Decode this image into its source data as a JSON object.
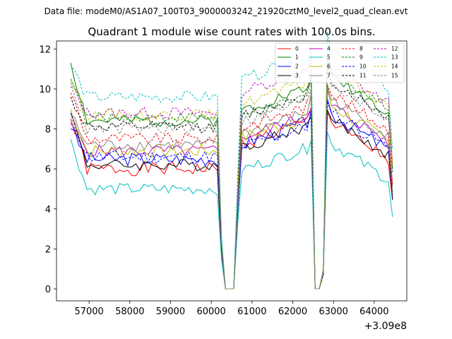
{
  "chart_data": {
    "type": "line",
    "suptitle": "Data file: modeM0/AS1A07_100T03_9000003242_21920cztM0_level2_quad_clean.evt",
    "title": "Quadrant 1 module wise count rates with 100.0s bins.",
    "xlabel": "",
    "ylabel": "",
    "x_offset_label": "+3.09e8",
    "xlim": [
      56200,
      64800
    ],
    "ylim": [
      -0.6,
      12.4
    ],
    "xticks": [
      57000,
      58000,
      59000,
      60000,
      61000,
      62000,
      63000,
      64000
    ],
    "yticks": [
      0,
      2,
      4,
      6,
      8,
      10,
      12
    ],
    "x_start": 56550,
    "x_step": 100,
    "n_points": 80,
    "gap1": {
      "lead_in": 60250,
      "zero_start": 60350,
      "zero_end": 60550,
      "recover": 60650
    },
    "gap2": {
      "lead_in": 62550,
      "zero_start": 62550,
      "zero_end": 62650,
      "recover": 62750
    },
    "legend": {
      "position": "upper right",
      "ncol": 4
    },
    "series": [
      {
        "name": "0",
        "color": "#ff0000",
        "style": "solid",
        "start": 8.5,
        "base": 6.0,
        "recover": 7.2,
        "spread": 0.35,
        "seed": 1
      },
      {
        "name": "1",
        "color": "#008000",
        "style": "solid",
        "start": 11.3,
        "base": 8.4,
        "recover": 8.9,
        "spread": 0.3,
        "seed": 2
      },
      {
        "name": "2",
        "color": "#0000ff",
        "style": "solid",
        "start": 8.0,
        "base": 6.5,
        "recover": 7.2,
        "spread": 0.35,
        "seed": 3
      },
      {
        "name": "3",
        "color": "#000000",
        "style": "solid",
        "start": 8.8,
        "base": 6.2,
        "recover": 7.0,
        "spread": 0.3,
        "seed": 4
      },
      {
        "name": "4",
        "color": "#bf00bf",
        "style": "solid",
        "start": 8.3,
        "base": 6.9,
        "recover": 7.5,
        "spread": 0.3,
        "seed": 5
      },
      {
        "name": "5",
        "color": "#00bfbf",
        "style": "solid",
        "start": 7.5,
        "base": 5.0,
        "recover": 5.9,
        "spread": 0.3,
        "seed": 6
      },
      {
        "name": "6",
        "color": "#bfbf00",
        "style": "solid",
        "start": 9.0,
        "base": 6.9,
        "recover": 7.5,
        "spread": 0.35,
        "seed": 7
      },
      {
        "name": "7",
        "color": "#808080",
        "style": "solid",
        "start": 8.7,
        "base": 7.2,
        "recover": 7.7,
        "spread": 0.3,
        "seed": 8
      },
      {
        "name": "8",
        "color": "#ff0000",
        "style": "dashed",
        "start": 9.8,
        "base": 7.5,
        "recover": 8.0,
        "spread": 0.3,
        "seed": 9
      },
      {
        "name": "9",
        "color": "#008000",
        "style": "dashed",
        "start": 10.5,
        "base": 8.6,
        "recover": 8.5,
        "spread": 0.25,
        "seed": 10
      },
      {
        "name": "10",
        "color": "#0000ff",
        "style": "dashed",
        "start": 8.8,
        "base": 6.6,
        "recover": 7.0,
        "spread": 0.35,
        "seed": 11
      },
      {
        "name": "11",
        "color": "#000000",
        "style": "dashed",
        "start": 9.6,
        "base": 8.1,
        "recover": 8.6,
        "spread": 0.3,
        "seed": 12
      },
      {
        "name": "12",
        "color": "#bf00bf",
        "style": "dashed",
        "start": 10.1,
        "base": 8.8,
        "recover": 9.8,
        "spread": 0.3,
        "seed": 13
      },
      {
        "name": "13",
        "color": "#00bfbf",
        "style": "dashed",
        "start": 11.2,
        "base": 9.6,
        "recover": 10.4,
        "spread": 0.3,
        "seed": 14
      },
      {
        "name": "14",
        "color": "#bfbf00",
        "style": "dashed",
        "start": 10.4,
        "base": 8.7,
        "recover": 9.2,
        "spread": 0.3,
        "seed": 15
      },
      {
        "name": "15",
        "color": "#808080",
        "style": "dashed",
        "start": 10.3,
        "base": 8.0,
        "recover": 8.3,
        "spread": 0.3,
        "seed": 16
      }
    ]
  }
}
